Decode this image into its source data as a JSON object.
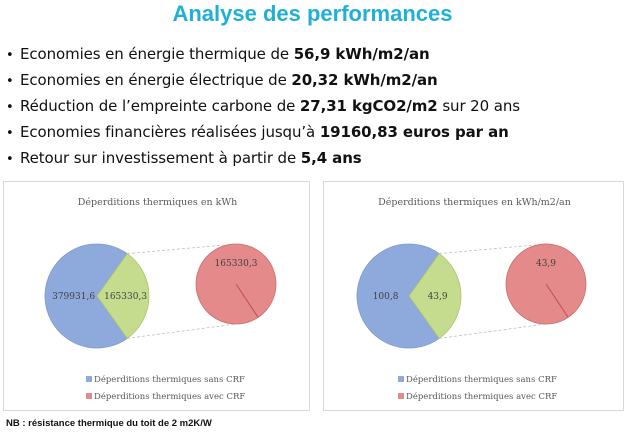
{
  "title": "Analyse des performances",
  "bullets": [
    {
      "text": "Economies en énergie thermique de ",
      "bold": "56,9 kWh/m2/an",
      "suffix": ""
    },
    {
      "text": "Economies en énergie électrique de ",
      "bold": "20,32 kWh/m2/an",
      "suffix": ""
    },
    {
      "text": "Réduction de l’empreinte carbone de ",
      "bold": "27,31 kgCO2/m2",
      "suffix": " sur 20 ans"
    },
    {
      "text": "Economies financières réalisées jusqu’à ",
      "bold": "19160,83 euros par an",
      "suffix": ""
    },
    {
      "text": "Retour sur investissement à partir de ",
      "bold": "5,4 ans",
      "suffix": ""
    }
  ],
  "bullet_glyph": "•",
  "note": "NB : résistance thermique du toit de 2 m2K/W",
  "colors": {
    "title": "#1fb0d6",
    "series_sans": "#8eaadc",
    "series_avec_main": "#c5dc8e",
    "series_avec_detail": "#e58a8a"
  },
  "chart_data": [
    {
      "type": "pie",
      "subtype": "pie-of-pie",
      "title": "Déperditions thermiques en kWh",
      "categories": [
        "Déperditions thermiques sans CRF",
        "Déperditions thermiques avec CRF"
      ],
      "values": [
        379931.6,
        165330.3
      ],
      "data_labels": [
        "379931,6",
        "165330,3"
      ],
      "secondary_pie": {
        "values": [
          165330.3
        ],
        "data_labels": [
          "165330,3"
        ]
      },
      "legend": [
        "Déperditions thermiques sans CRF",
        "Déperditions thermiques avec CRF"
      ],
      "legend_position": "bottom"
    },
    {
      "type": "pie",
      "subtype": "pie-of-pie",
      "title": "Déperditions thermiques en kWh/m2/an",
      "categories": [
        "Déperditions thermiques sans CRF",
        "Déperditions thermiques avec CRF"
      ],
      "values": [
        100.8,
        43.9
      ],
      "data_labels": [
        "100,8",
        "43,9"
      ],
      "secondary_pie": {
        "values": [
          43.9
        ],
        "data_labels": [
          "43,9"
        ]
      },
      "legend": [
        "Déperditions thermiques sans CRF",
        "Déperditions thermiques avec CRF"
      ],
      "legend_position": "bottom"
    }
  ]
}
